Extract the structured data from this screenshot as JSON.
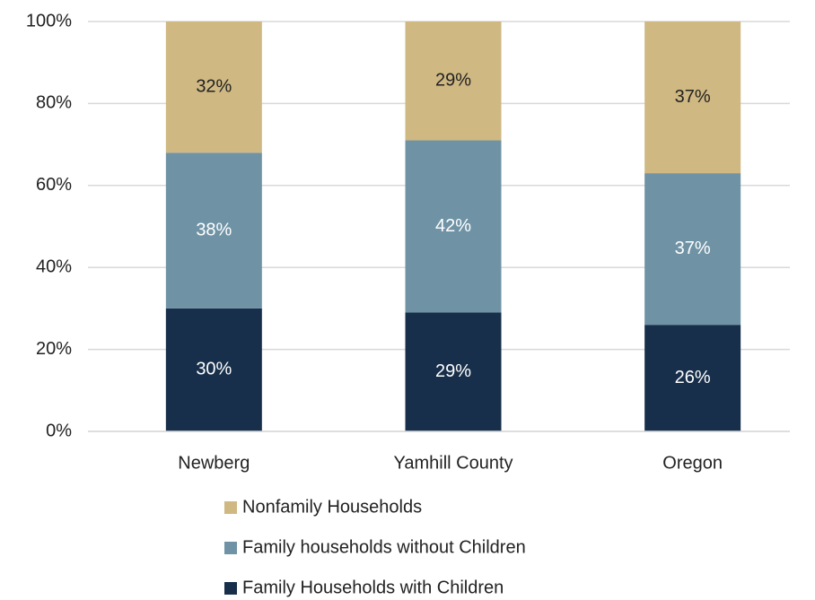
{
  "chart_data": {
    "type": "stacked_bar",
    "categories": [
      "Newberg",
      "Yamhill County",
      "Oregon"
    ],
    "series": [
      {
        "name": "Family Households with Children",
        "color": "#172f4a",
        "values": [
          30,
          29,
          26
        ],
        "value_labels": [
          "30%",
          "29%",
          "26%"
        ]
      },
      {
        "name": "Family households without Children",
        "color": "#6f93a5",
        "values": [
          38,
          42,
          37
        ],
        "value_labels": [
          "38%",
          "42%",
          "37%"
        ]
      },
      {
        "name": "Nonfamily Households",
        "color": "#cfb882",
        "values": [
          32,
          29,
          37
        ],
        "value_labels": [
          "32%",
          "29%",
          "37%"
        ]
      }
    ],
    "ylim": [
      0,
      100
    ],
    "yticks": [
      {
        "value": 0,
        "label": "0%"
      },
      {
        "value": 20,
        "label": "20%"
      },
      {
        "value": 40,
        "label": "40%"
      },
      {
        "value": 60,
        "label": "60%"
      },
      {
        "value": 80,
        "label": "80%"
      },
      {
        "value": 100,
        "label": "100%"
      }
    ],
    "grid": true,
    "legend": "bottom"
  }
}
